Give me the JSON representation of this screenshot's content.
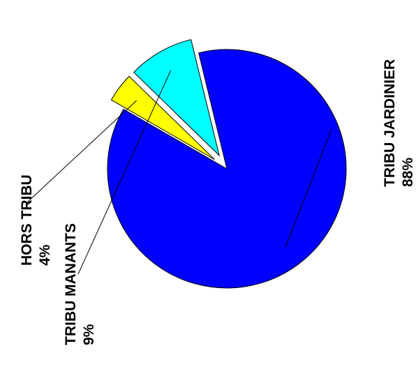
{
  "chart_data": {
    "type": "pie",
    "title": "",
    "slices": [
      {
        "label": "TRIBU JARDINIER",
        "pct_label": "88%",
        "value": 88,
        "color": "#0000ff",
        "exploded": false
      },
      {
        "label": "TRIBU MANANTS",
        "pct_label": "9%",
        "value": 9,
        "color": "#00ffff",
        "exploded": true
      },
      {
        "label": "HORS TRIBU",
        "pct_label": "4%",
        "value": 4,
        "color": "#ffff00",
        "exploded": true
      }
    ],
    "label_orientation": "rotated-90",
    "legend": false
  }
}
